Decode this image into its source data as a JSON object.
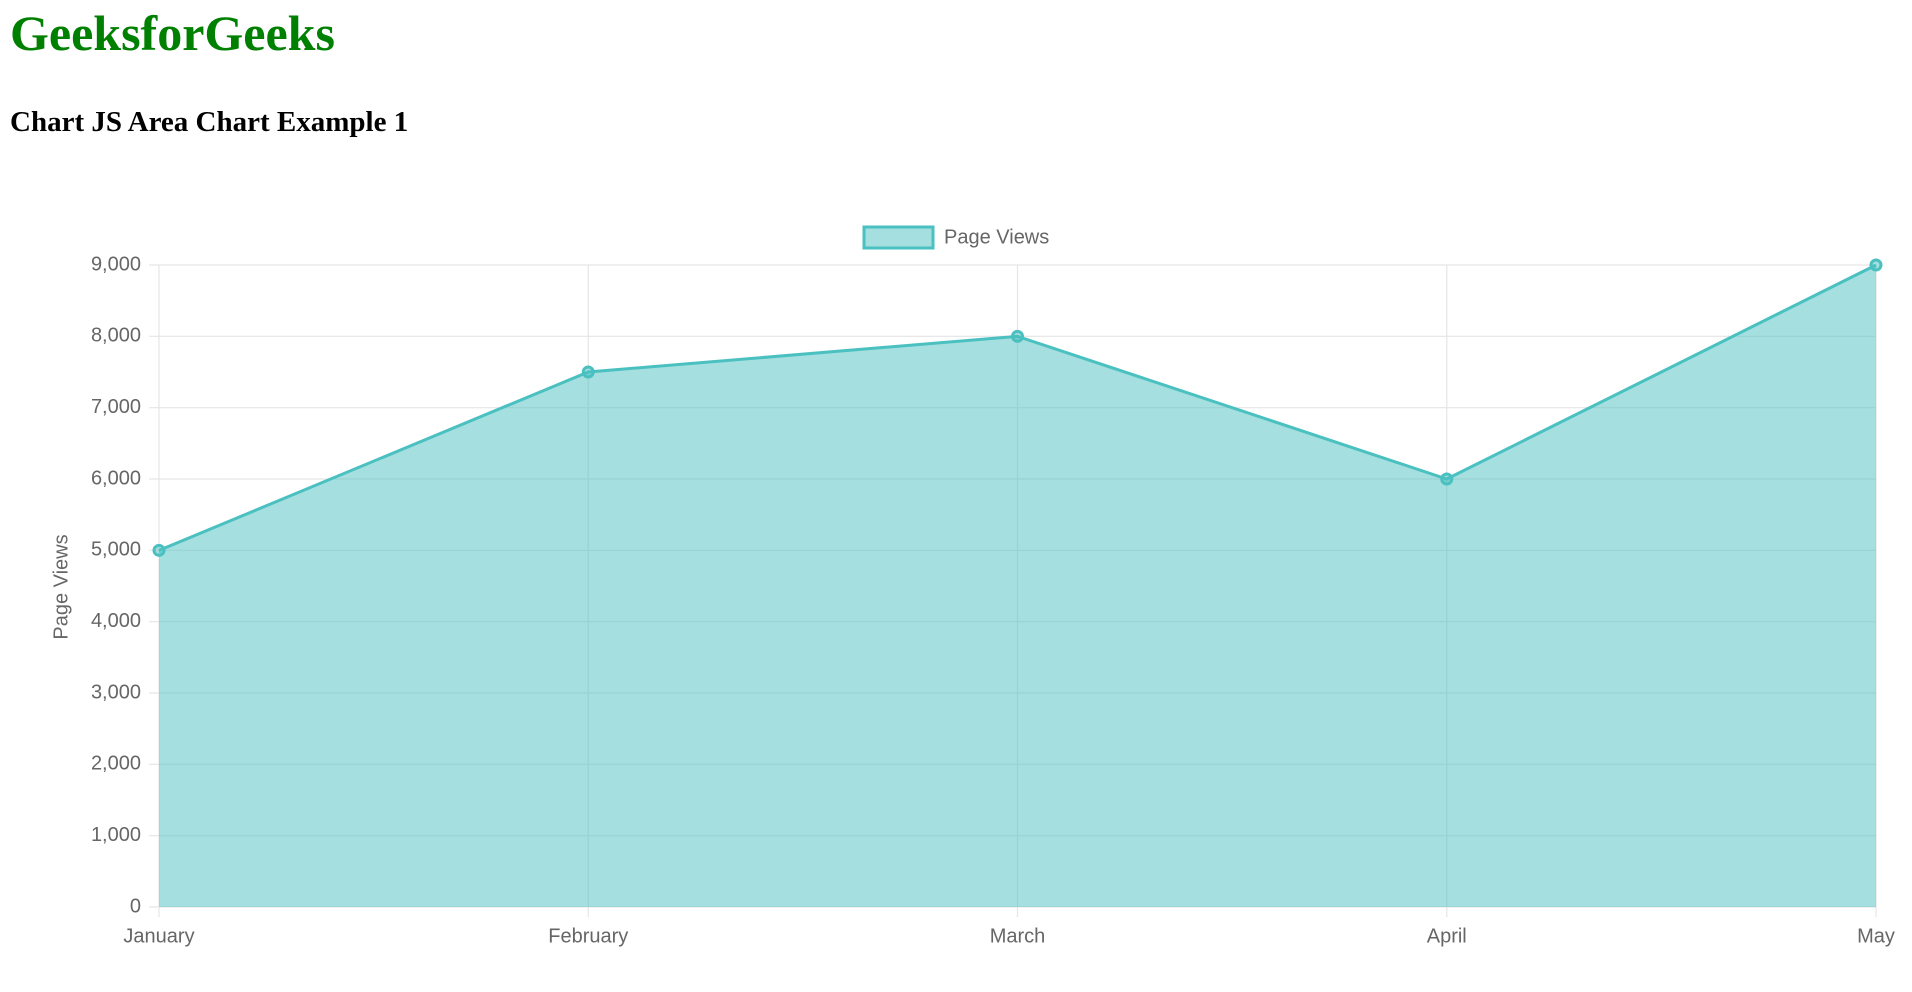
{
  "page": {
    "heading": "GeeksforGeeks",
    "subheading": "Chart JS Area Chart Example 1"
  },
  "chart_data": {
    "type": "area",
    "categories": [
      "January",
      "February",
      "March",
      "April",
      "May"
    ],
    "series": [
      {
        "name": "Page Views",
        "color": "#4bc0c0",
        "values": [
          5000,
          7500,
          8000,
          6000,
          9000
        ]
      }
    ],
    "y_label": "Page Views",
    "ylim": [
      0,
      9000
    ],
    "yticks": [
      0,
      {
        "value": 1000,
        "label": "1,000"
      },
      {
        "value": 2000,
        "label": "2,000"
      },
      {
        "value": 3000,
        "label": "3,000"
      },
      {
        "value": 4000,
        "label": "4,000"
      },
      {
        "value": 5000,
        "label": "5,000"
      },
      {
        "value": 6000,
        "label": "6,000"
      },
      {
        "value": 7000,
        "label": "7,000"
      },
      {
        "value": 8000,
        "label": "8,000"
      },
      {
        "value": 9000,
        "label": "9,000"
      }
    ],
    "grid": true,
    "legend": "top"
  }
}
